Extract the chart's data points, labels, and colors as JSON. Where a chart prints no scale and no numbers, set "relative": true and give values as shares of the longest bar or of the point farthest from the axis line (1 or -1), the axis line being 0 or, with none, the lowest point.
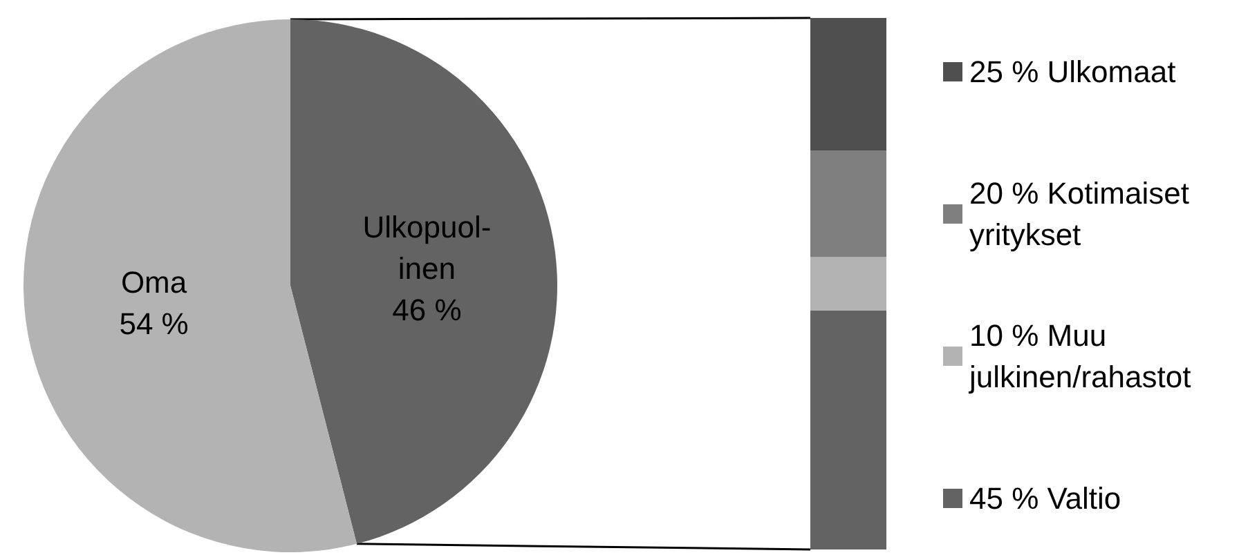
{
  "chart_data": [
    {
      "type": "pie",
      "categories": [
        "Ulkopuol-\ninen",
        "Oma"
      ],
      "values": [
        46,
        54
      ],
      "colors": [
        "#636363",
        "#b3b3b3"
      ],
      "value_labels": [
        "46 %",
        "54 %"
      ]
    },
    {
      "type": "bar",
      "stacked": true,
      "relative": true,
      "categories": [
        null
      ],
      "series": [
        {
          "name": "45 % Valtio",
          "color": "#636363",
          "values": [
            0.45
          ]
        },
        {
          "name": "10 % Muu\njulkinen/rahastot",
          "color": "#b3b3b3",
          "values": [
            0.1
          ]
        },
        {
          "name": "20 % Kotimaiset\nyritykset",
          "color": "#7f7f7f",
          "values": [
            0.2
          ]
        },
        {
          "name": "25 % Ulkomaat",
          "color": "#4f4f4f",
          "values": [
            0.25
          ]
        }
      ],
      "tick_labels": false,
      "legend": "right"
    }
  ]
}
